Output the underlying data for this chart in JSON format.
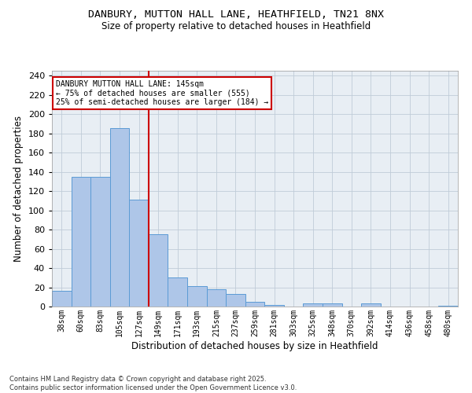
{
  "title_line1": "DANBURY, MUTTON HALL LANE, HEATHFIELD, TN21 8NX",
  "title_line2": "Size of property relative to detached houses in Heathfield",
  "xlabel": "Distribution of detached houses by size in Heathfield",
  "ylabel": "Number of detached properties",
  "categories": [
    "38sqm",
    "60sqm",
    "83sqm",
    "105sqm",
    "127sqm",
    "149sqm",
    "171sqm",
    "193sqm",
    "215sqm",
    "237sqm",
    "259sqm",
    "281sqm",
    "303sqm",
    "325sqm",
    "348sqm",
    "370sqm",
    "392sqm",
    "414sqm",
    "436sqm",
    "458sqm",
    "480sqm"
  ],
  "values": [
    16,
    135,
    135,
    185,
    111,
    75,
    30,
    21,
    18,
    13,
    5,
    2,
    0,
    3,
    3,
    0,
    3,
    0,
    0,
    0,
    1
  ],
  "bar_color": "#aec6e8",
  "bar_edge_color": "#5b9bd5",
  "vline_color": "#cc0000",
  "vline_x_index": 4.5,
  "annotation_text": "DANBURY MUTTON HALL LANE: 145sqm\n← 75% of detached houses are smaller (555)\n25% of semi-detached houses are larger (184) →",
  "annotation_box_color": "#ffffff",
  "annotation_box_edge": "#cc0000",
  "ylim": [
    0,
    245
  ],
  "yticks": [
    0,
    20,
    40,
    60,
    80,
    100,
    120,
    140,
    160,
    180,
    200,
    220,
    240
  ],
  "footer_line1": "Contains HM Land Registry data © Crown copyright and database right 2025.",
  "footer_line2": "Contains public sector information licensed under the Open Government Licence v3.0.",
  "bg_color": "#e8eef4",
  "fig_bg_color": "#ffffff"
}
